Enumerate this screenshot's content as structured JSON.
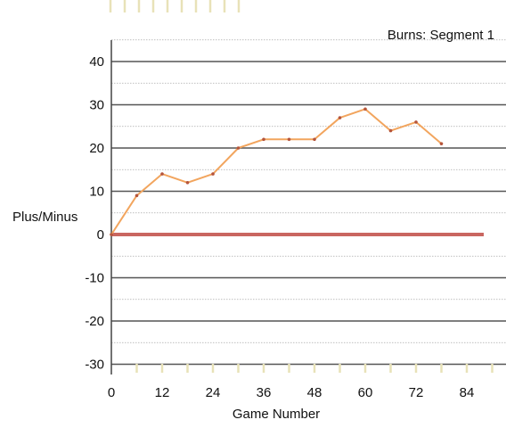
{
  "chart_data": {
    "type": "line",
    "title": "Burns: Segment 1",
    "xlabel": "Game Number",
    "ylabel": "Plus/Minus",
    "xlim": [
      0,
      90
    ],
    "ylim": [
      -30,
      45
    ],
    "x_ticks": [
      0,
      12,
      24,
      36,
      48,
      60,
      72,
      84
    ],
    "x_tick_labels": [
      "0",
      "12",
      "24",
      "36",
      "48",
      "60",
      "72",
      "84"
    ],
    "y_ticks": [
      40,
      30,
      20,
      10,
      0,
      -10,
      -20,
      -30
    ],
    "y_tick_labels": [
      "40",
      "30",
      "20",
      "10",
      "0",
      "-10",
      "-20",
      "-30"
    ],
    "grid": true,
    "series": [
      {
        "x": [
          0,
          6,
          12,
          18,
          24,
          30,
          36,
          42,
          48,
          54,
          60,
          66,
          72,
          78
        ],
        "y": [
          0,
          9,
          14,
          12,
          14,
          20,
          22,
          22,
          22,
          27,
          29,
          24,
          26,
          21
        ]
      }
    ],
    "zero_line": {
      "y": 0,
      "x_range": [
        0,
        88
      ]
    },
    "colors": {
      "series": "#f2a55e",
      "zero_line": "#c96660",
      "gridline_major": "#555555",
      "gridline_minor": "#aaaaaa",
      "tick_marks": "#e8e2b8"
    }
  }
}
